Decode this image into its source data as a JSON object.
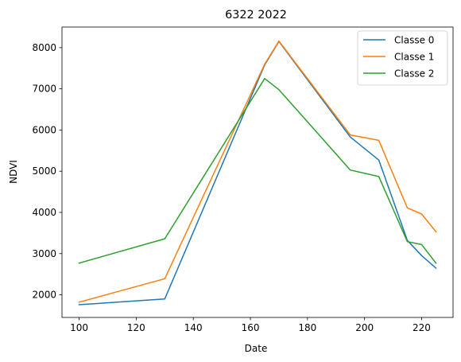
{
  "chart_data": {
    "type": "line",
    "title": "6322 2022",
    "xlabel": "Date",
    "ylabel": "NDVI",
    "xlim": [
      94,
      231
    ],
    "ylim": [
      1450,
      8500
    ],
    "xticks": [
      100,
      120,
      140,
      160,
      180,
      200,
      220
    ],
    "yticks": [
      2000,
      3000,
      4000,
      5000,
      6000,
      7000,
      8000
    ],
    "legend_position": "top-right",
    "series": [
      {
        "name": "Classe 0",
        "color": "#1f77b4",
        "x": [
          100,
          130,
          165,
          170,
          195,
          205,
          215,
          220,
          225
        ],
        "y": [
          1760,
          1900,
          7580,
          8150,
          5830,
          5270,
          3320,
          2950,
          2650
        ]
      },
      {
        "name": "Classe 1",
        "color": "#ff7f0e",
        "x": [
          100,
          130,
          165,
          170,
          195,
          205,
          215,
          220,
          225
        ],
        "y": [
          1820,
          2390,
          7600,
          8160,
          5880,
          5750,
          4110,
          3960,
          3530
        ]
      },
      {
        "name": "Classe 2",
        "color": "#2ca02c",
        "x": [
          100,
          130,
          165,
          170,
          195,
          205,
          215,
          220,
          225
        ],
        "y": [
          2770,
          3360,
          7250,
          6980,
          5030,
          4870,
          3290,
          3220,
          2770
        ]
      }
    ]
  }
}
